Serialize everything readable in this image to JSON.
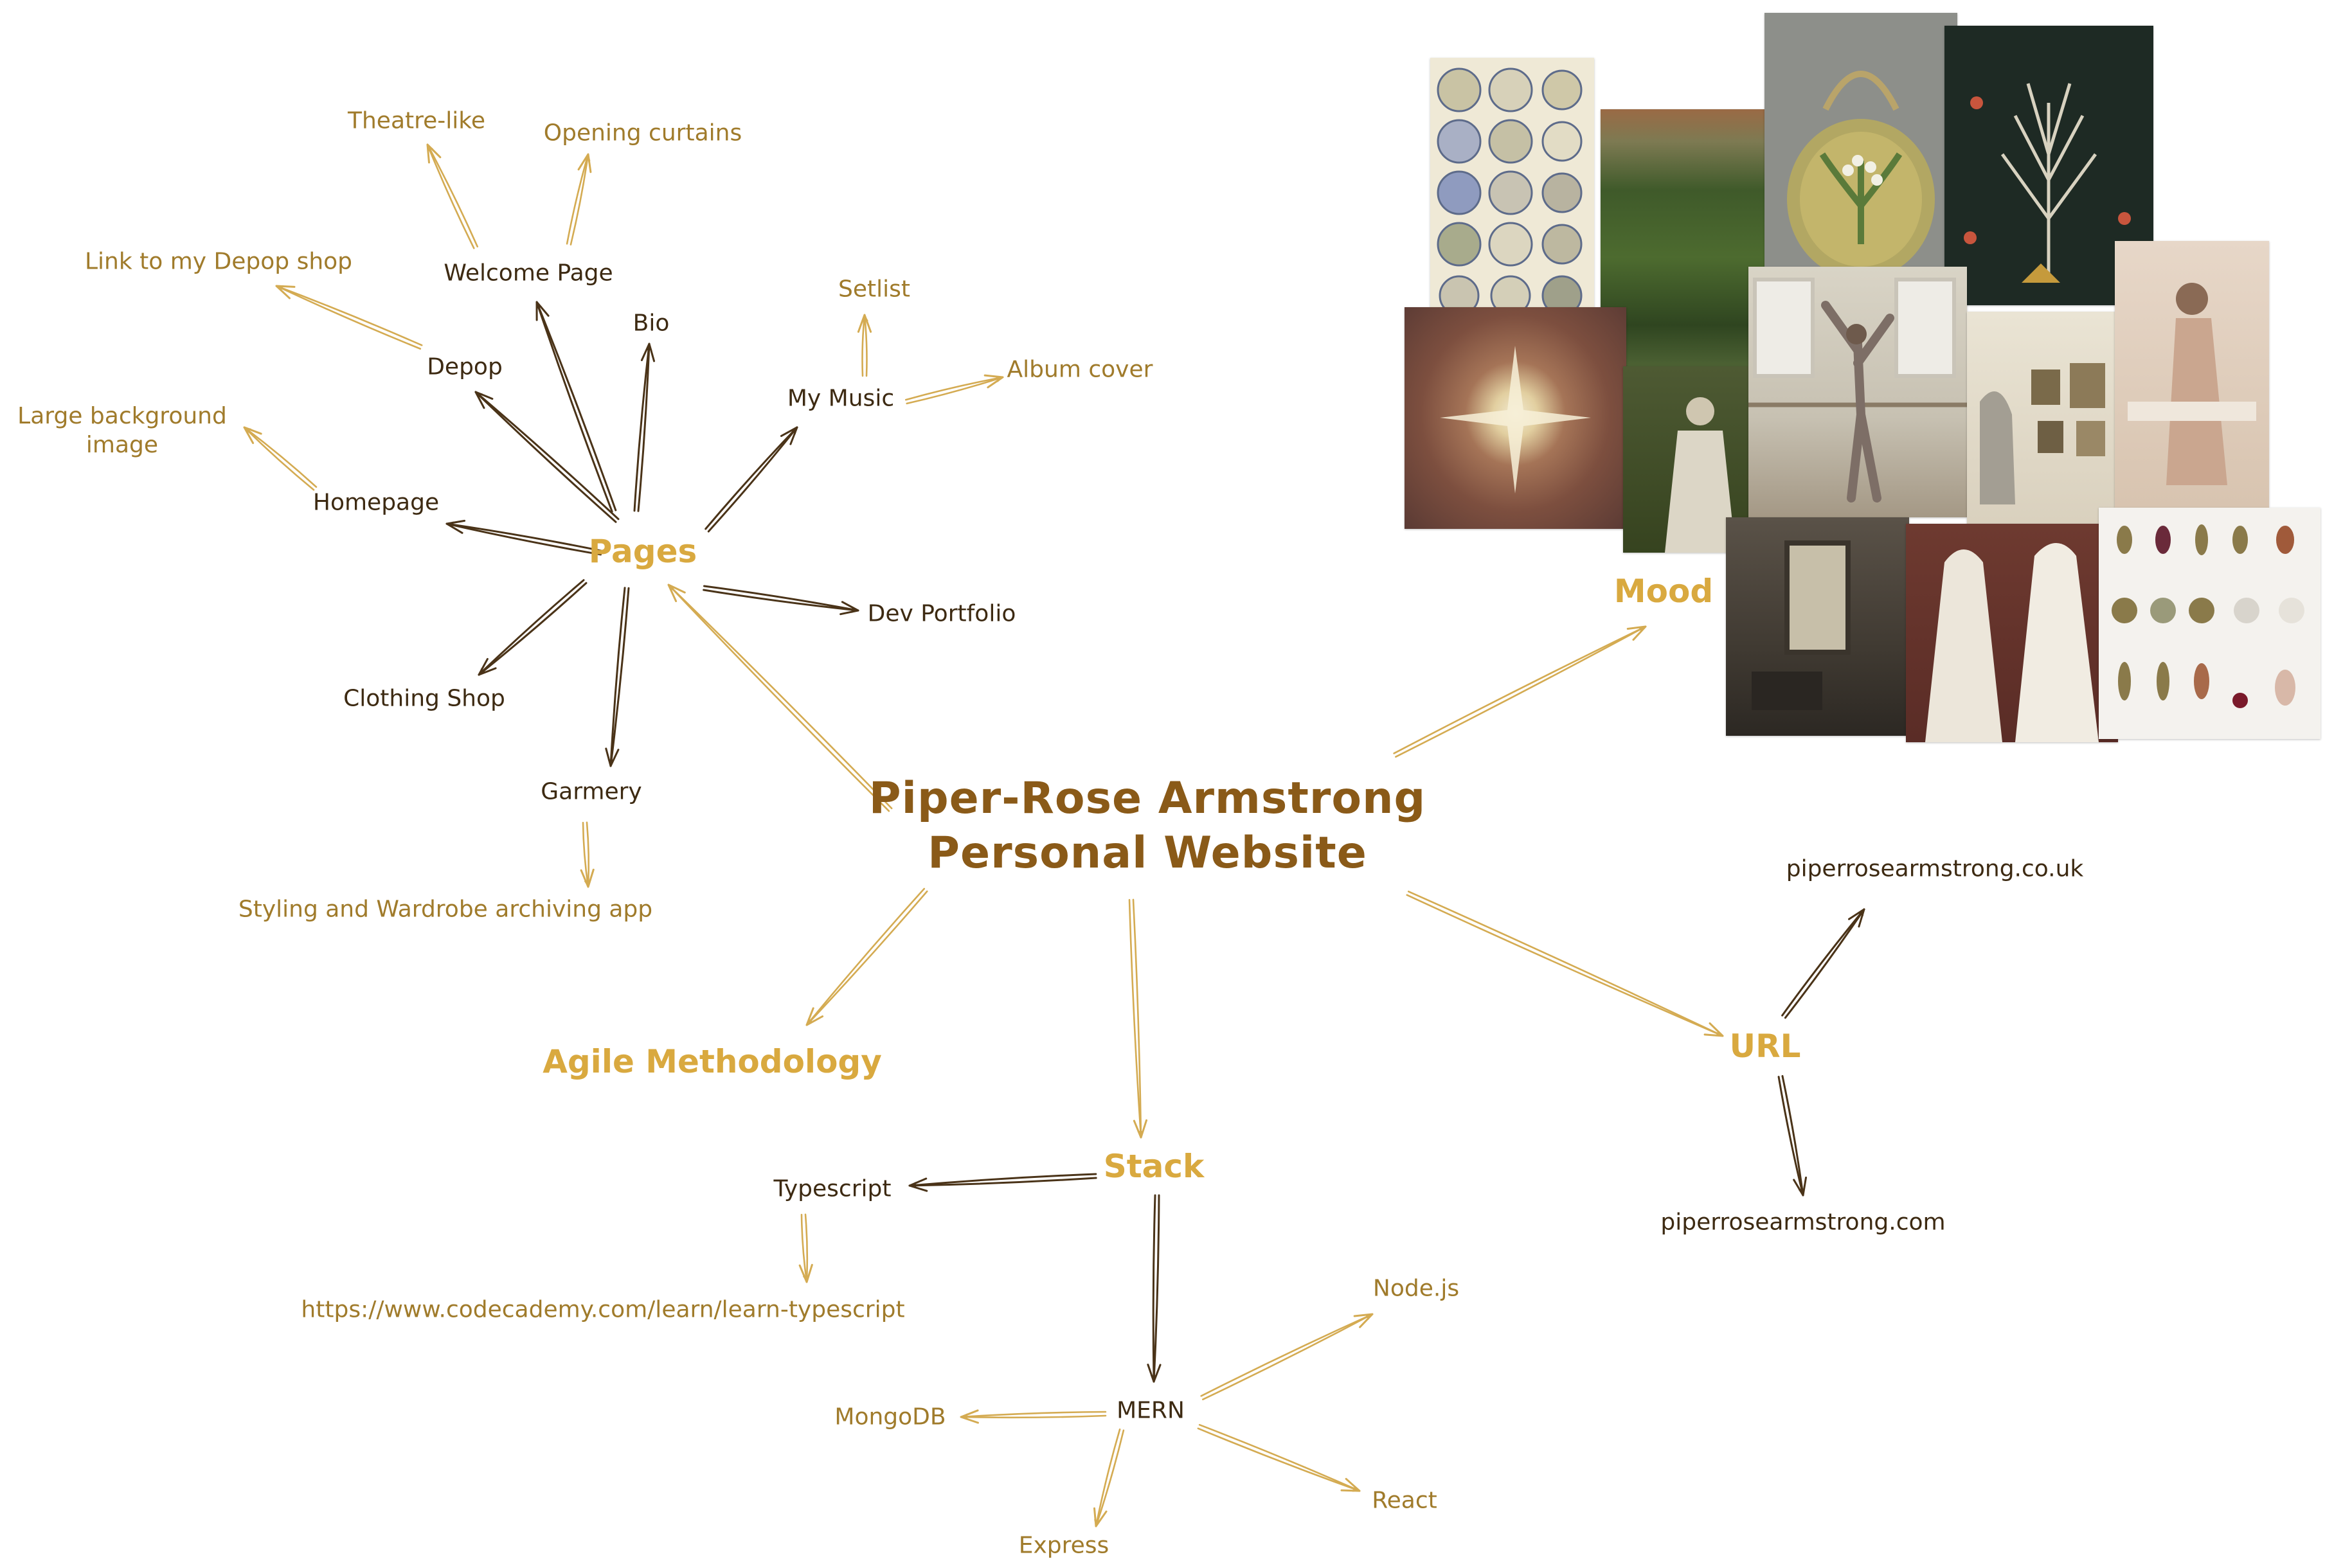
{
  "colors": {
    "title": "#8a5a18",
    "hub": "#d9a93f",
    "dark_text": "#3d2a12",
    "light_text": "#a07b2b",
    "arrow_gold": "#d4ab52",
    "arrow_dark": "#4a3318"
  },
  "diagram": {
    "title_line1": "Piper-Rose Armstrong",
    "title_line2": "Personal Website",
    "nodes": {
      "pages": "Pages",
      "mood": "Mood",
      "agile": "Agile Methodology",
      "stack": "Stack",
      "url": "URL",
      "welcome": "Welcome Page",
      "theatre": "Theatre-like",
      "curtains": "Opening curtains",
      "bio": "Bio",
      "depop": "Depop",
      "depop_link": "Link to my Depop shop",
      "homepage": "Homepage",
      "large_bg": "Large background image",
      "music": "My Music",
      "setlist": "Setlist",
      "album": "Album cover",
      "dev": "Dev Portfolio",
      "clothing": "Clothing Shop",
      "garmery": "Garmery",
      "styling": "Styling and Wardrobe archiving app",
      "typescript": "Typescript",
      "codecademy": "https://www.codecademy.com/learn/learn-typescript",
      "mern": "MERN",
      "node": "Node.js",
      "mongo": "MongoDB",
      "react": "React",
      "express": "Express",
      "url_uk": "piperrosearmstrong.co.uk",
      "url_com": "piperrosearmstrong.com"
    }
  },
  "moodboard_images": [
    "porcelain-plate-sketches",
    "overgrown-garden-ruins",
    "lily-of-the-valley-handbag",
    "folk-art-tree-embroidery",
    "painted-starburst-eye",
    "victorian-woman-in-garden",
    "ballet-dancer-at-barre",
    "gallery-room-with-statue",
    "woman-in-embellished-dress",
    "dark-parisian-interior",
    "white-hooded-bridal-figures",
    "botanical-earrings-collection"
  ]
}
